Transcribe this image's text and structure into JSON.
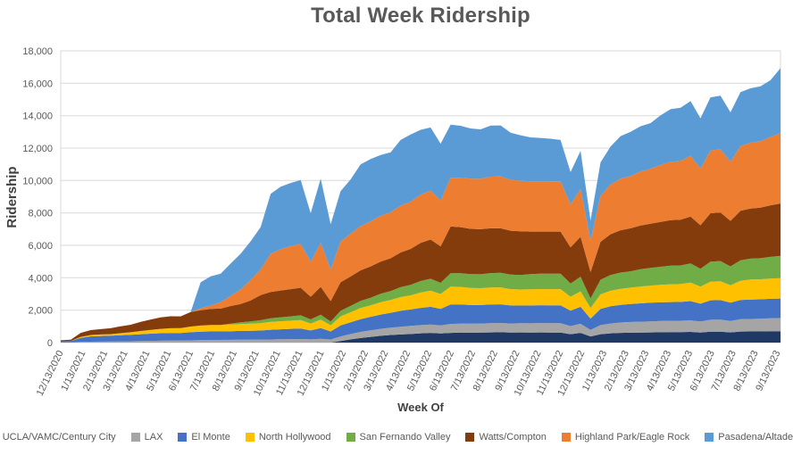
{
  "chart_data": {
    "type": "area",
    "stacked": true,
    "title": "Total Week Ridership",
    "xlabel": "Week Of",
    "ylabel": "Ridership",
    "ylim": [
      0,
      18000
    ],
    "ytick_step": 2000,
    "grid": true,
    "legend_position": "bottom",
    "colors": {
      "grid": "#D9D9D9",
      "axis_text": "#595959",
      "title_text": "#595959",
      "axis_title_text": "#404040",
      "plot_border": "#D9D9D9",
      "background": "#FFFFFF"
    },
    "xtick_labels": [
      "12/13/2020",
      "1/13/2021",
      "2/13/2021",
      "3/13/2021",
      "4/13/2021",
      "5/13/2021",
      "6/13/2021",
      "7/13/2021",
      "8/13/2021",
      "9/13/2021",
      "10/13/2021",
      "11/13/2021",
      "12/13/2021",
      "1/13/2022",
      "2/13/2022",
      "3/13/2022",
      "4/13/2022",
      "5/13/2022",
      "6/13/2022",
      "7/13/2022",
      "8/13/2022",
      "9/13/2022",
      "10/13/2022",
      "11/13/2022",
      "12/13/2022",
      "1/13/2023",
      "2/13/2023",
      "3/13/2023",
      "4/13/2023",
      "5/13/2023",
      "6/13/2023",
      "7/13/2023",
      "8/13/2023",
      "9/13/2023"
    ],
    "x": [
      "2020-12-13",
      "2020-12-27",
      "2021-01-10",
      "2021-01-24",
      "2021-02-07",
      "2021-02-21",
      "2021-03-07",
      "2021-03-21",
      "2021-04-04",
      "2021-04-18",
      "2021-05-02",
      "2021-05-16",
      "2021-05-30",
      "2021-06-13",
      "2021-06-27",
      "2021-07-11",
      "2021-07-25",
      "2021-08-08",
      "2021-08-22",
      "2021-09-05",
      "2021-09-19",
      "2021-10-03",
      "2021-10-17",
      "2021-10-31",
      "2021-11-14",
      "2021-11-28",
      "2021-12-12",
      "2021-12-26",
      "2022-01-09",
      "2022-01-23",
      "2022-02-06",
      "2022-02-20",
      "2022-03-06",
      "2022-03-20",
      "2022-04-03",
      "2022-04-17",
      "2022-05-01",
      "2022-05-15",
      "2022-05-29",
      "2022-06-12",
      "2022-06-26",
      "2022-07-10",
      "2022-07-24",
      "2022-08-07",
      "2022-08-21",
      "2022-09-04",
      "2022-09-18",
      "2022-10-02",
      "2022-10-16",
      "2022-10-30",
      "2022-11-13",
      "2022-11-27",
      "2022-12-11",
      "2022-12-25",
      "2023-01-08",
      "2023-01-22",
      "2023-02-05",
      "2023-02-19",
      "2023-03-05",
      "2023-03-19",
      "2023-04-02",
      "2023-04-16",
      "2023-04-30",
      "2023-05-14",
      "2023-05-28",
      "2023-06-11",
      "2023-06-25",
      "2023-07-09",
      "2023-07-23",
      "2023-08-06",
      "2023-08-20",
      "2023-09-03",
      "2023-09-17"
    ],
    "series": [
      {
        "name": "UCLA/VAMC/Century City",
        "color": "#1F3864",
        "values": [
          0,
          0,
          0,
          0,
          0,
          0,
          0,
          0,
          0,
          0,
          0,
          0,
          0,
          0,
          0,
          0,
          0,
          0,
          0,
          0,
          0,
          0,
          0,
          0,
          0,
          0,
          0,
          0,
          100,
          200,
          280,
          350,
          420,
          470,
          500,
          530,
          570,
          600,
          560,
          600,
          620,
          610,
          620,
          630,
          640,
          620,
          630,
          620,
          630,
          620,
          620,
          520,
          600,
          380,
          520,
          570,
          600,
          610,
          620,
          630,
          640,
          650,
          650,
          660,
          620,
          670,
          670,
          630,
          680,
          690,
          690,
          700,
          700
        ]
      },
      {
        "name": "LAX",
        "color": "#A5A5A5",
        "values": [
          15,
          20,
          40,
          55,
          60,
          65,
          75,
          85,
          95,
          105,
          115,
          120,
          125,
          140,
          150,
          160,
          165,
          170,
          175,
          180,
          185,
          195,
          205,
          215,
          220,
          200,
          230,
          190,
          280,
          330,
          380,
          410,
          430,
          450,
          480,
          500,
          510,
          520,
          500,
          550,
          555,
          560,
          560,
          570,
          570,
          560,
          565,
          570,
          575,
          580,
          580,
          500,
          560,
          400,
          560,
          610,
          640,
          660,
          670,
          680,
          690,
          700,
          700,
          710,
          680,
          740,
          750,
          710,
          760,
          770,
          780,
          800,
          820
        ]
      },
      {
        "name": "El Monte",
        "color": "#4472C4",
        "values": [
          70,
          80,
          250,
          330,
          350,
          360,
          380,
          395,
          420,
          445,
          465,
          475,
          470,
          500,
          520,
          530,
          525,
          535,
          545,
          550,
          560,
          600,
          615,
          630,
          650,
          550,
          660,
          500,
          680,
          720,
          790,
          830,
          880,
          920,
          980,
          1010,
          1060,
          1090,
          1020,
          1200,
          1180,
          1150,
          1140,
          1150,
          1150,
          1110,
          1090,
          1100,
          1100,
          1100,
          1100,
          950,
          1050,
          700,
          1000,
          1060,
          1090,
          1110,
          1130,
          1150,
          1150,
          1150,
          1160,
          1190,
          1100,
          1200,
          1200,
          1120,
          1190,
          1200,
          1200,
          1200,
          1200
        ]
      },
      {
        "name": "North Hollywood",
        "color": "#FFC000",
        "values": [
          0,
          0,
          60,
          85,
          90,
          100,
          130,
          160,
          200,
          235,
          270,
          290,
          295,
          350,
          380,
          395,
          400,
          410,
          420,
          435,
          455,
          480,
          495,
          505,
          520,
          430,
          530,
          380,
          560,
          620,
          680,
          710,
          760,
          790,
          850,
          880,
          950,
          990,
          920,
          1100,
          1080,
          1050,
          1040,
          1050,
          1050,
          1010,
          990,
          1000,
          1000,
          1000,
          1000,
          860,
          950,
          650,
          900,
          960,
          990,
          1010,
          1040,
          1060,
          1080,
          1100,
          1100,
          1140,
          1050,
          1150,
          1160,
          1080,
          1180,
          1230,
          1240,
          1250,
          1260
        ]
      },
      {
        "name": "San Fernando Valley",
        "color": "#70AD47",
        "values": [
          0,
          0,
          0,
          0,
          0,
          0,
          0,
          0,
          0,
          0,
          0,
          0,
          0,
          0,
          0,
          0,
          0,
          60,
          110,
          140,
          180,
          230,
          250,
          270,
          295,
          250,
          300,
          230,
          340,
          390,
          440,
          470,
          520,
          550,
          610,
          640,
          710,
          740,
          690,
          830,
          840,
          850,
          855,
          890,
          900,
          895,
          900,
          940,
          945,
          950,
          950,
          820,
          910,
          600,
          900,
          970,
          1000,
          1010,
          1070,
          1090,
          1120,
          1150,
          1150,
          1190,
          1100,
          1240,
          1250,
          1160,
          1270,
          1290,
          1300,
          1340,
          1370
        ]
      },
      {
        "name": "Watts/Compton",
        "color": "#843C0C",
        "values": [
          60,
          80,
          250,
          300,
          330,
          360,
          420,
          460,
          560,
          640,
          700,
          740,
          730,
          900,
          950,
          990,
          1010,
          1080,
          1130,
          1300,
          1550,
          1620,
          1650,
          1680,
          1700,
          1400,
          1720,
          1260,
          1760,
          1820,
          1890,
          1930,
          1990,
          2020,
          2140,
          2220,
          2350,
          2420,
          2250,
          2880,
          2850,
          2800,
          2780,
          2760,
          2740,
          2710,
          2690,
          2620,
          2600,
          2600,
          2600,
          2230,
          2460,
          1620,
          2340,
          2520,
          2610,
          2650,
          2690,
          2720,
          2760,
          2800,
          2820,
          2890,
          2690,
          2980,
          3000,
          2810,
          3050,
          3090,
          3120,
          3180,
          3230
        ]
      },
      {
        "name": "Highland Park/Eagle Rock",
        "color": "#ED7D31",
        "values": [
          0,
          0,
          0,
          0,
          0,
          0,
          0,
          0,
          0,
          0,
          0,
          0,
          0,
          0,
          120,
          210,
          400,
          620,
          900,
          1250,
          1600,
          2350,
          2550,
          2650,
          2700,
          2150,
          2720,
          1940,
          2520,
          2640,
          2730,
          2780,
          2820,
          2840,
          2890,
          2910,
          2980,
          3010,
          2830,
          3010,
          3050,
          3090,
          3110,
          3190,
          3200,
          3140,
          3110,
          3110,
          3110,
          3110,
          3100,
          2640,
          2950,
          1930,
          2850,
          3060,
          3190,
          3230,
          3340,
          3400,
          3520,
          3600,
          3630,
          3750,
          3500,
          3870,
          3900,
          3650,
          3990,
          4060,
          4100,
          4220,
          4340
        ]
      },
      {
        "name": "Pasadena/Altadena",
        "color": "#5B9BD5",
        "values": [
          0,
          0,
          0,
          0,
          0,
          0,
          0,
          0,
          0,
          0,
          0,
          0,
          0,
          0,
          1600,
          1800,
          1750,
          2000,
          2200,
          2400,
          2600,
          3700,
          3850,
          3900,
          3950,
          3000,
          3950,
          2800,
          3100,
          3350,
          3800,
          3850,
          3750,
          3700,
          4050,
          4150,
          4000,
          3900,
          3500,
          3280,
          3200,
          3100,
          3050,
          3150,
          3150,
          2900,
          2820,
          2700,
          2670,
          2620,
          2550,
          2000,
          2350,
          1250,
          2050,
          2350,
          2620,
          2720,
          2790,
          2810,
          3060,
          3250,
          3280,
          3370,
          3100,
          3280,
          3300,
          3050,
          3330,
          3360,
          3380,
          3500,
          4010
        ]
      }
    ]
  }
}
